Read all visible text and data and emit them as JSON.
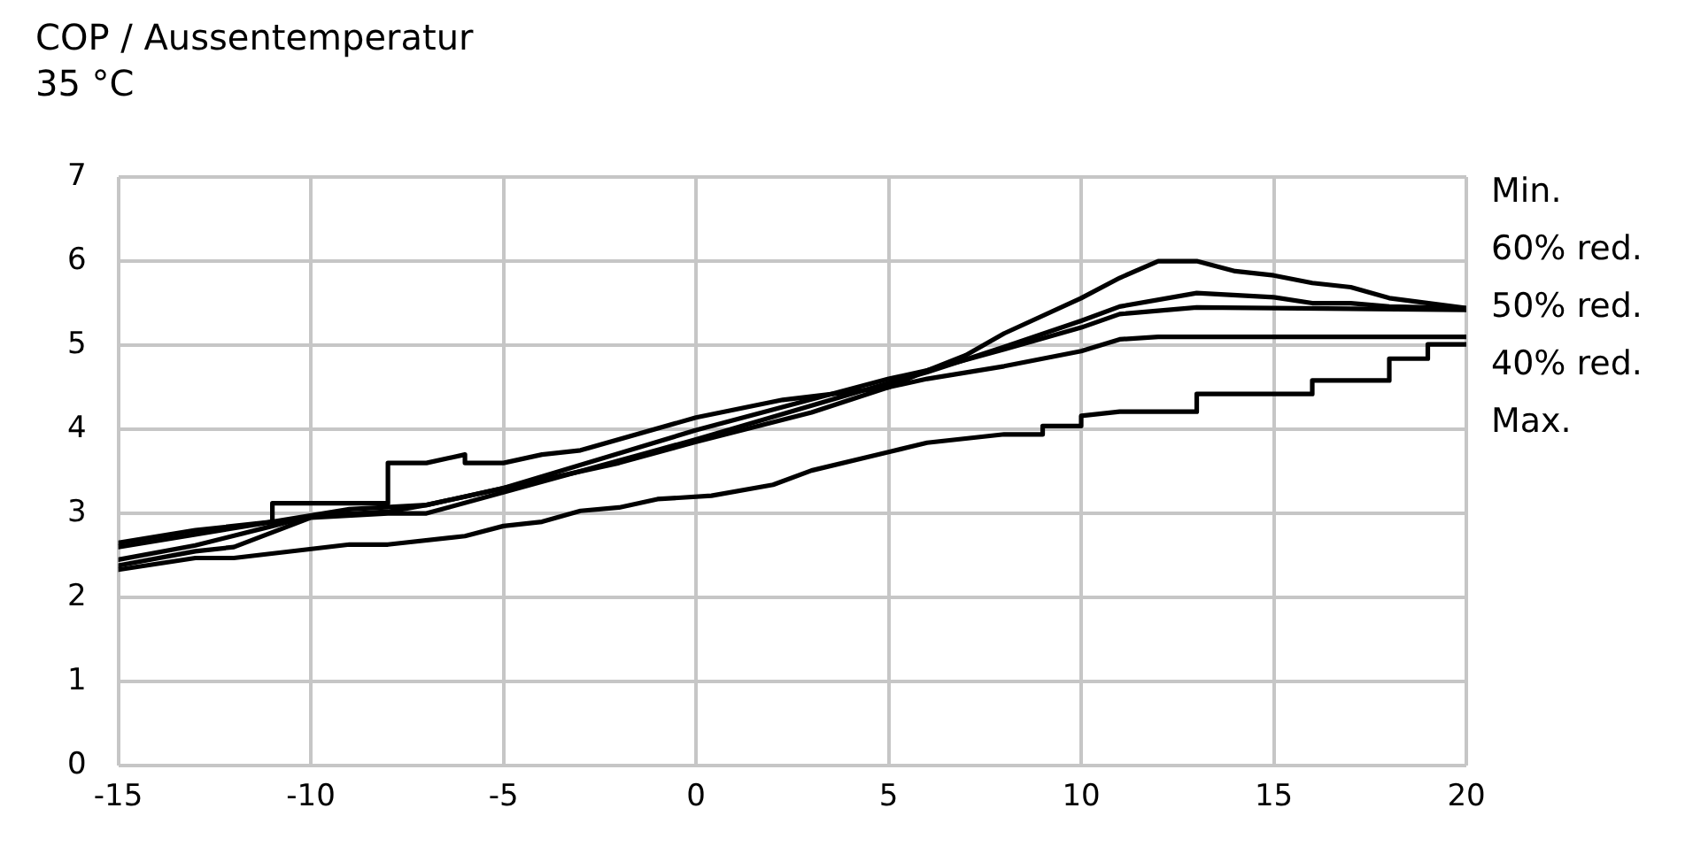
{
  "chart_data": {
    "type": "line",
    "title": "COP / Aussentemperatur",
    "subtitle": "35 °C",
    "xlim": [
      -15,
      20
    ],
    "xticks": [
      -15,
      -10,
      -5,
      0,
      5,
      10,
      15,
      20
    ],
    "ylim": [
      0,
      7
    ],
    "yticks": [
      0,
      1,
      2,
      3,
      4,
      5,
      6,
      7
    ],
    "grid": true,
    "legend": "right",
    "marker": "none",
    "line_style": "solid",
    "series": [
      {
        "name": "Min.",
        "color": "#000000",
        "x": [
          -15,
          -13,
          -11,
          -10,
          -8,
          -7,
          -5,
          -2,
          0,
          3,
          5,
          6,
          7,
          8,
          10,
          11,
          12,
          13,
          14,
          15,
          16,
          17,
          18,
          20
        ],
        "values": [
          2.45,
          2.62,
          2.85,
          2.97,
          3.02,
          3.1,
          3.3,
          3.6,
          3.85,
          4.2,
          4.5,
          4.7,
          4.88,
          5.14,
          5.56,
          5.8,
          6.0,
          6.0,
          5.88,
          5.83,
          5.74,
          5.69,
          5.56,
          5.44
        ]
      },
      {
        "name": "60% red.",
        "color": "#000000",
        "x": [
          -15,
          -13,
          -12,
          -10,
          -8,
          -7,
          -5,
          0,
          5,
          6,
          8,
          10,
          11,
          13,
          15,
          16,
          17,
          18,
          20
        ],
        "values": [
          2.38,
          2.55,
          2.6,
          2.95,
          3.0,
          3.0,
          3.25,
          3.88,
          4.55,
          4.68,
          4.98,
          5.29,
          5.46,
          5.62,
          5.57,
          5.5,
          5.5,
          5.46,
          5.44
        ]
      },
      {
        "name": "50% red.",
        "color": "#000000",
        "x": [
          -15,
          -13,
          -11,
          -9,
          -7,
          -5,
          0,
          5,
          6,
          8,
          10,
          11,
          13,
          20
        ],
        "values": [
          2.6,
          2.75,
          2.9,
          3.05,
          3.1,
          3.3,
          3.99,
          4.6,
          4.7,
          4.95,
          5.21,
          5.37,
          5.45,
          5.42
        ]
      },
      {
        "name": "40% red.",
        "color": "#000000",
        "x": [
          -15,
          -13,
          -11,
          -11,
          -8,
          -8,
          -7,
          -6,
          -6,
          -5,
          -4,
          -3,
          0,
          2.25,
          5,
          6,
          8,
          10,
          11,
          12,
          20
        ],
        "values": [
          2.65,
          2.8,
          2.9,
          3.12,
          3.12,
          3.6,
          3.6,
          3.7,
          3.6,
          3.6,
          3.7,
          3.75,
          4.14,
          4.35,
          4.5,
          4.6,
          4.75,
          4.93,
          5.07,
          5.1,
          5.1
        ]
      },
      {
        "name": "Max.",
        "color": "#000000",
        "x": [
          -15,
          -13,
          -12,
          -9,
          -8,
          -6,
          -5,
          -4,
          -3,
          -2,
          -1,
          0.4,
          2,
          3,
          5,
          6,
          8,
          9,
          9,
          10,
          10,
          11,
          13,
          13,
          16,
          16,
          18,
          18,
          19,
          19,
          20
        ],
        "values": [
          2.33,
          2.47,
          2.47,
          2.63,
          2.63,
          2.73,
          2.85,
          2.9,
          3.03,
          3.07,
          3.17,
          3.21,
          3.34,
          3.51,
          3.73,
          3.84,
          3.94,
          3.94,
          4.04,
          4.04,
          4.16,
          4.21,
          4.21,
          4.42,
          4.42,
          4.58,
          4.58,
          4.84,
          4.84,
          5.01,
          5.01
        ]
      }
    ]
  }
}
